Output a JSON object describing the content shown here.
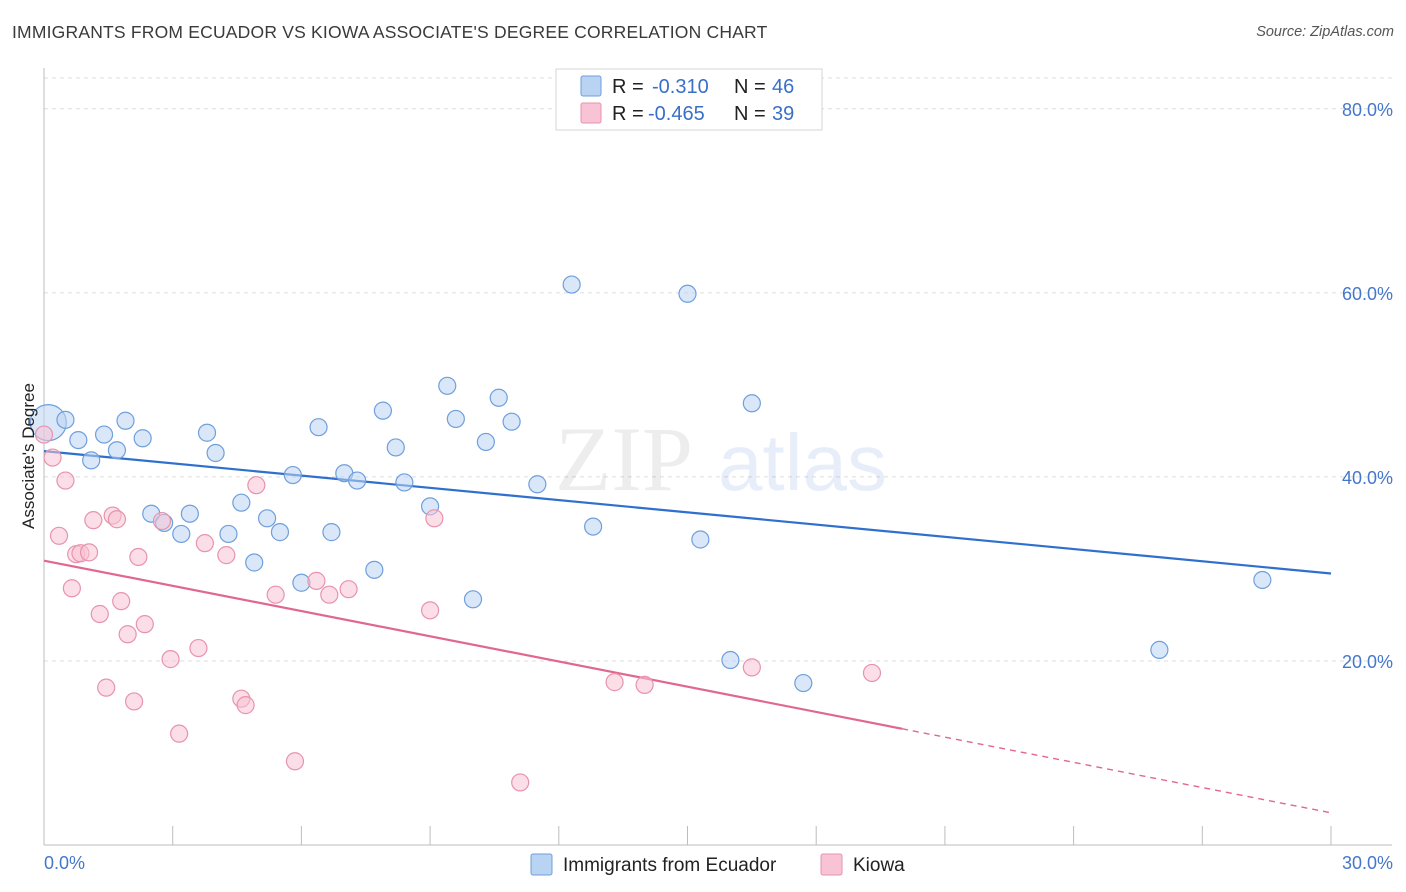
{
  "header": {
    "title": "IMMIGRANTS FROM ECUADOR VS KIOWA ASSOCIATE'S DEGREE CORRELATION CHART",
    "source": "Source: ZipAtlas.com"
  },
  "watermark": {
    "zip": "ZIP",
    "atlas": "atlas"
  },
  "colors": {
    "ecuador_fill": "#b9d3f3",
    "ecuador_stroke": "#6f9fdc",
    "ecuador_line": "#2f6fce",
    "kiowa_fill": "#f8c3d4",
    "kiowa_stroke": "#e893ad",
    "kiowa_line": "#e0688f",
    "axis_label": "#4477cc"
  },
  "legend": {
    "rows": [
      {
        "r_label": "R = ",
        "r_value": "-0.310",
        "n_label": "N = ",
        "n_value": "46"
      },
      {
        "r_label": "R = ",
        "r_value": "-0.465",
        "n_label": "N = ",
        "n_value": "39"
      }
    ]
  },
  "chart_data": {
    "type": "scatter",
    "title": "IMMIGRANTS FROM ECUADOR VS KIOWA ASSOCIATE'S DEGREE CORRELATION CHART",
    "xlabel": "",
    "ylabel": "Associate's Degree",
    "xlim": [
      0,
      30
    ],
    "ylim": [
      0,
      84
    ],
    "x_tick_labels": [
      "0.0%",
      "30.0%"
    ],
    "y_ticks": [
      20,
      40,
      60,
      80
    ],
    "y_tick_labels": [
      "20.0%",
      "40.0%",
      "60.0%",
      "80.0%"
    ],
    "grid": true,
    "legend_position": "top-center",
    "series": [
      {
        "name": "Immigrants from Ecuador",
        "r": -0.31,
        "n": 46,
        "trend": {
          "x": [
            0,
            30
          ],
          "y": [
            42.8,
            29.5
          ],
          "dashed_from": null
        },
        "points": [
          {
            "x": 0.1,
            "y": 45.9,
            "big": true
          },
          {
            "x": 0.5,
            "y": 46.2
          },
          {
            "x": 0.8,
            "y": 44.0
          },
          {
            "x": 1.1,
            "y": 41.8
          },
          {
            "x": 1.4,
            "y": 44.6
          },
          {
            "x": 1.7,
            "y": 42.9
          },
          {
            "x": 1.9,
            "y": 46.1
          },
          {
            "x": 2.3,
            "y": 44.2
          },
          {
            "x": 2.5,
            "y": 36.0
          },
          {
            "x": 2.8,
            "y": 35.0
          },
          {
            "x": 3.2,
            "y": 33.8
          },
          {
            "x": 3.4,
            "y": 36.0
          },
          {
            "x": 3.8,
            "y": 44.8
          },
          {
            "x": 4.0,
            "y": 42.6
          },
          {
            "x": 4.3,
            "y": 33.8
          },
          {
            "x": 4.6,
            "y": 37.2
          },
          {
            "x": 4.9,
            "y": 30.7
          },
          {
            "x": 5.2,
            "y": 35.5
          },
          {
            "x": 5.5,
            "y": 34.0
          },
          {
            "x": 5.8,
            "y": 40.2
          },
          {
            "x": 6.0,
            "y": 28.5
          },
          {
            "x": 6.4,
            "y": 45.4
          },
          {
            "x": 6.7,
            "y": 34.0
          },
          {
            "x": 7.0,
            "y": 40.4
          },
          {
            "x": 7.3,
            "y": 39.6
          },
          {
            "x": 7.7,
            "y": 29.9
          },
          {
            "x": 7.9,
            "y": 47.2
          },
          {
            "x": 8.2,
            "y": 43.2
          },
          {
            "x": 8.4,
            "y": 39.4
          },
          {
            "x": 9.0,
            "y": 36.8
          },
          {
            "x": 9.4,
            "y": 49.9
          },
          {
            "x": 9.6,
            "y": 46.3
          },
          {
            "x": 10.0,
            "y": 26.7
          },
          {
            "x": 10.3,
            "y": 43.8
          },
          {
            "x": 10.6,
            "y": 48.6
          },
          {
            "x": 10.9,
            "y": 46.0
          },
          {
            "x": 11.5,
            "y": 39.2
          },
          {
            "x": 12.3,
            "y": 60.9
          },
          {
            "x": 12.8,
            "y": 34.6
          },
          {
            "x": 15.0,
            "y": 59.9
          },
          {
            "x": 15.3,
            "y": 33.2
          },
          {
            "x": 16.0,
            "y": 20.1
          },
          {
            "x": 16.5,
            "y": 48.0
          },
          {
            "x": 17.7,
            "y": 17.6
          },
          {
            "x": 26.0,
            "y": 21.2
          },
          {
            "x": 28.4,
            "y": 28.8
          }
        ]
      },
      {
        "name": "Kiowa",
        "r": -0.465,
        "n": 39,
        "trend": {
          "x": [
            0,
            30
          ],
          "y": [
            30.9,
            3.5
          ],
          "dashed_from": 20.0
        },
        "points": [
          {
            "x": 0.0,
            "y": 44.6
          },
          {
            "x": 0.2,
            "y": 42.1
          },
          {
            "x": 0.35,
            "y": 33.6
          },
          {
            "x": 0.5,
            "y": 39.6
          },
          {
            "x": 0.65,
            "y": 27.9
          },
          {
            "x": 0.75,
            "y": 31.6
          },
          {
            "x": 0.85,
            "y": 31.7
          },
          {
            "x": 1.05,
            "y": 31.8
          },
          {
            "x": 1.15,
            "y": 35.3
          },
          {
            "x": 1.3,
            "y": 25.1
          },
          {
            "x": 1.45,
            "y": 17.1
          },
          {
            "x": 1.6,
            "y": 35.8
          },
          {
            "x": 1.7,
            "y": 35.4
          },
          {
            "x": 1.8,
            "y": 26.5
          },
          {
            "x": 1.95,
            "y": 22.9
          },
          {
            "x": 2.1,
            "y": 15.6
          },
          {
            "x": 2.2,
            "y": 31.3
          },
          {
            "x": 2.35,
            "y": 24.0
          },
          {
            "x": 2.75,
            "y": 35.2
          },
          {
            "x": 2.95,
            "y": 20.2
          },
          {
            "x": 3.15,
            "y": 12.1
          },
          {
            "x": 3.6,
            "y": 21.4
          },
          {
            "x": 3.75,
            "y": 32.8
          },
          {
            "x": 4.25,
            "y": 31.5
          },
          {
            "x": 4.6,
            "y": 15.9
          },
          {
            "x": 4.7,
            "y": 15.2
          },
          {
            "x": 4.95,
            "y": 39.1
          },
          {
            "x": 5.4,
            "y": 27.2
          },
          {
            "x": 5.85,
            "y": 9.1
          },
          {
            "x": 6.35,
            "y": 28.7
          },
          {
            "x": 6.65,
            "y": 27.2
          },
          {
            "x": 7.1,
            "y": 27.8
          },
          {
            "x": 9.0,
            "y": 25.5
          },
          {
            "x": 9.1,
            "y": 35.5
          },
          {
            "x": 11.1,
            "y": 6.8
          },
          {
            "x": 13.3,
            "y": 17.7
          },
          {
            "x": 14.0,
            "y": 17.4
          },
          {
            "x": 16.5,
            "y": 19.3
          },
          {
            "x": 19.3,
            "y": 18.7
          }
        ]
      }
    ]
  }
}
